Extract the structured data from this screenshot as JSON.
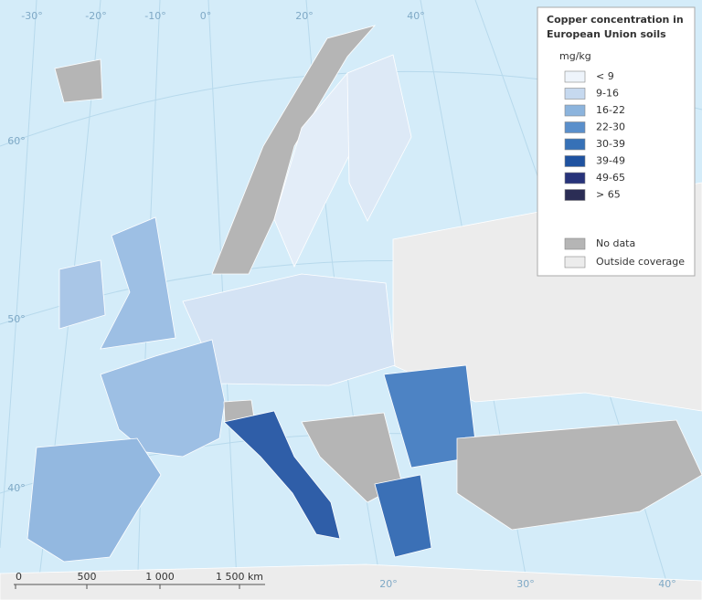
{
  "title": "Copper concentration in European Union soils",
  "legend": {
    "unit": "mg/kg",
    "items": [
      {
        "label": "< 9",
        "color": "#eef4fb"
      },
      {
        "label": "9-16",
        "color": "#c6d9ef"
      },
      {
        "label": "16-22",
        "color": "#8cb4dd"
      },
      {
        "label": "22-30",
        "color": "#5a8fcb"
      },
      {
        "label": "30-39",
        "color": "#3671b7"
      },
      {
        "label": "39-49",
        "color": "#1f52a0"
      },
      {
        "label": "49-65",
        "color": "#27337a"
      },
      {
        "label": "> 65",
        "color": "#2b2d55"
      }
    ],
    "other": [
      {
        "label": "No data",
        "color": "#b5b5b5"
      },
      {
        "label": "Outside coverage",
        "color": "#ececec"
      }
    ]
  },
  "graticule": {
    "top": [
      "-30°",
      "-20°",
      "-10°",
      "0°",
      "20°",
      "40°"
    ],
    "left": [
      "60°",
      "50°",
      "40°"
    ],
    "bottom": [
      "20°",
      "30°",
      "40°"
    ]
  },
  "scale_bar": [
    "0",
    "500",
    "1 000",
    "1 500 km"
  ]
}
